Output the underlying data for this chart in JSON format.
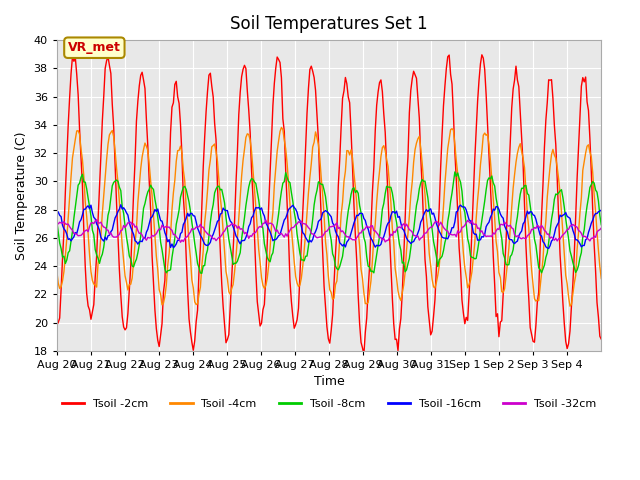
{
  "title": "Soil Temperatures Set 1",
  "xlabel": "Time",
  "ylabel": "Soil Temperature (C)",
  "ylim": [
    18,
    40
  ],
  "yticks": [
    18,
    20,
    22,
    24,
    26,
    28,
    30,
    32,
    34,
    36,
    38,
    40
  ],
  "xtick_labels": [
    "Aug 20",
    "Aug 21",
    "Aug 22",
    "Aug 23",
    "Aug 24",
    "Aug 25",
    "Aug 26",
    "Aug 27",
    "Aug 28",
    "Aug 29",
    "Aug 30",
    "Aug 31",
    "Sep 1",
    "Sep 2",
    "Sep 3",
    "Sep 4"
  ],
  "n_days": 16,
  "annotation_text": "VR_met",
  "colors": {
    "Tsoil -2cm": "#ff0000",
    "Tsoil -4cm": "#ff8800",
    "Tsoil -8cm": "#00cc00",
    "Tsoil -16cm": "#0000ff",
    "Tsoil -32cm": "#cc00cc"
  },
  "legend_labels": [
    "Tsoil -2cm",
    "Tsoil -4cm",
    "Tsoil -8cm",
    "Tsoil -16cm",
    "Tsoil -32cm"
  ]
}
